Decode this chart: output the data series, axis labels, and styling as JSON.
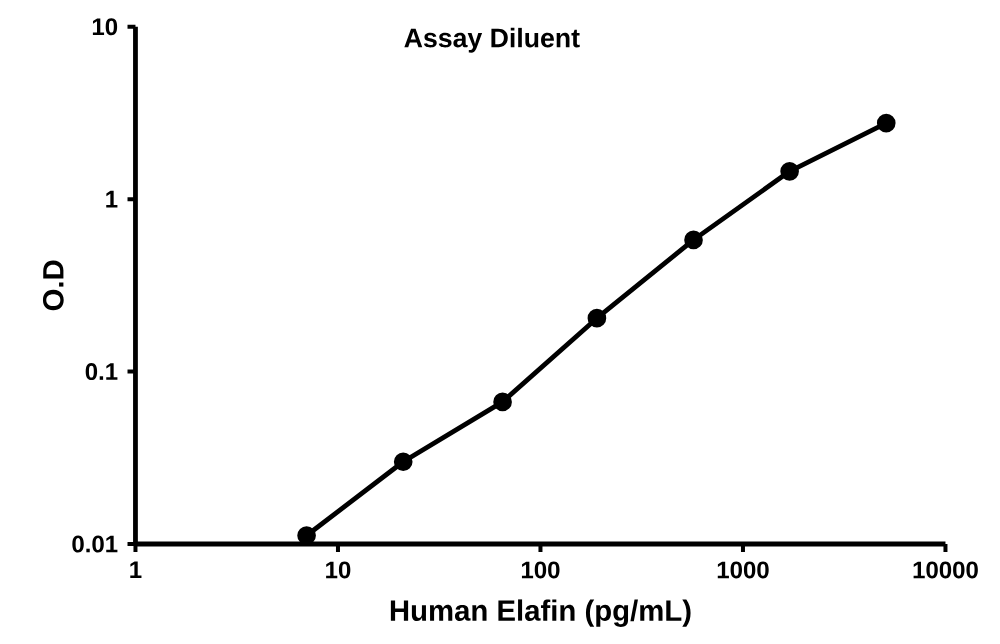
{
  "chart_data": {
    "type": "line",
    "title": "Assay Diluent",
    "xlabel": "Human Elafin (pg/mL)",
    "ylabel": "O.D",
    "log": "xy",
    "xlim": [
      1,
      10000
    ],
    "ylim": [
      0.01,
      10
    ],
    "xticks": [
      1,
      10,
      100,
      1000,
      10000
    ],
    "yticks": [
      0.01,
      0.1,
      1,
      10
    ],
    "marker": "circle",
    "line_style": "solid",
    "series": [
      {
        "color": "#000000",
        "x": [
          7,
          21,
          65,
          190,
          570,
          1700,
          5100
        ],
        "values": [
          0.0112,
          0.03,
          0.0667,
          0.204,
          0.58,
          1.45,
          2.76
        ]
      }
    ]
  }
}
